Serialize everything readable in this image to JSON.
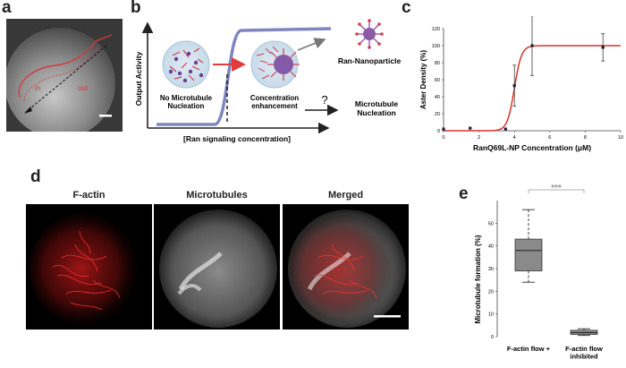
{
  "panels": {
    "a": "a",
    "b": "b",
    "c": "c",
    "d": "d",
    "e": "e"
  },
  "panel_a": {
    "label_in": "in",
    "label_out": "out"
  },
  "panel_b": {
    "ylabel": "Output Activity",
    "xlabel": "[Ran signaling concentration]",
    "no_nucleation": "No Microtubule\nNucleation",
    "concentration": "Concentration\nenhancement",
    "ran_np": "Ran-Nanoparticle",
    "question": "?",
    "mt_nucleation": "Microtubule\nNucleation"
  },
  "panel_d": {
    "titles": [
      "F-actin",
      "Microtubules",
      "Merged"
    ]
  },
  "chart_data": [
    {
      "type": "scatter",
      "xlabel": "RanQ69L-NP Concentration (μM)",
      "ylabel": "Aster Density (%)",
      "xlim": [
        0,
        10
      ],
      "ylim": [
        0,
        120
      ],
      "xticks": [
        0,
        2,
        4,
        6,
        8,
        10
      ],
      "yticks": [
        0,
        20,
        40,
        60,
        80,
        100,
        120
      ],
      "points": [
        {
          "x": 0,
          "y": 2
        },
        {
          "x": 1.5,
          "y": 3
        },
        {
          "x": 3.5,
          "y": 2
        },
        {
          "x": 4,
          "y": 53,
          "err": 24
        },
        {
          "x": 5,
          "y": 100,
          "err": 35
        },
        {
          "x": 9,
          "y": 98,
          "err": 16
        }
      ],
      "fit": {
        "type": "sigmoid",
        "top": 100,
        "bottom": 0,
        "midpoint": 4.0,
        "slope": 0.2
      },
      "fit_color": "#d9342b"
    },
    {
      "type": "box",
      "ylabel": "Microtubule formation (%)",
      "ylim": [
        0,
        60
      ],
      "yticks": [
        0,
        10,
        20,
        30,
        40,
        50
      ],
      "categories": [
        "F-actin flow +",
        "F-actin flow\ninhibited"
      ],
      "boxes": [
        {
          "min": 24,
          "q1": 29,
          "median": 38,
          "q3": 43,
          "max": 56
        },
        {
          "min": 0.5,
          "q1": 1,
          "median": 1.8,
          "q3": 2.8,
          "max": 3.5
        }
      ],
      "significance": "***"
    }
  ]
}
